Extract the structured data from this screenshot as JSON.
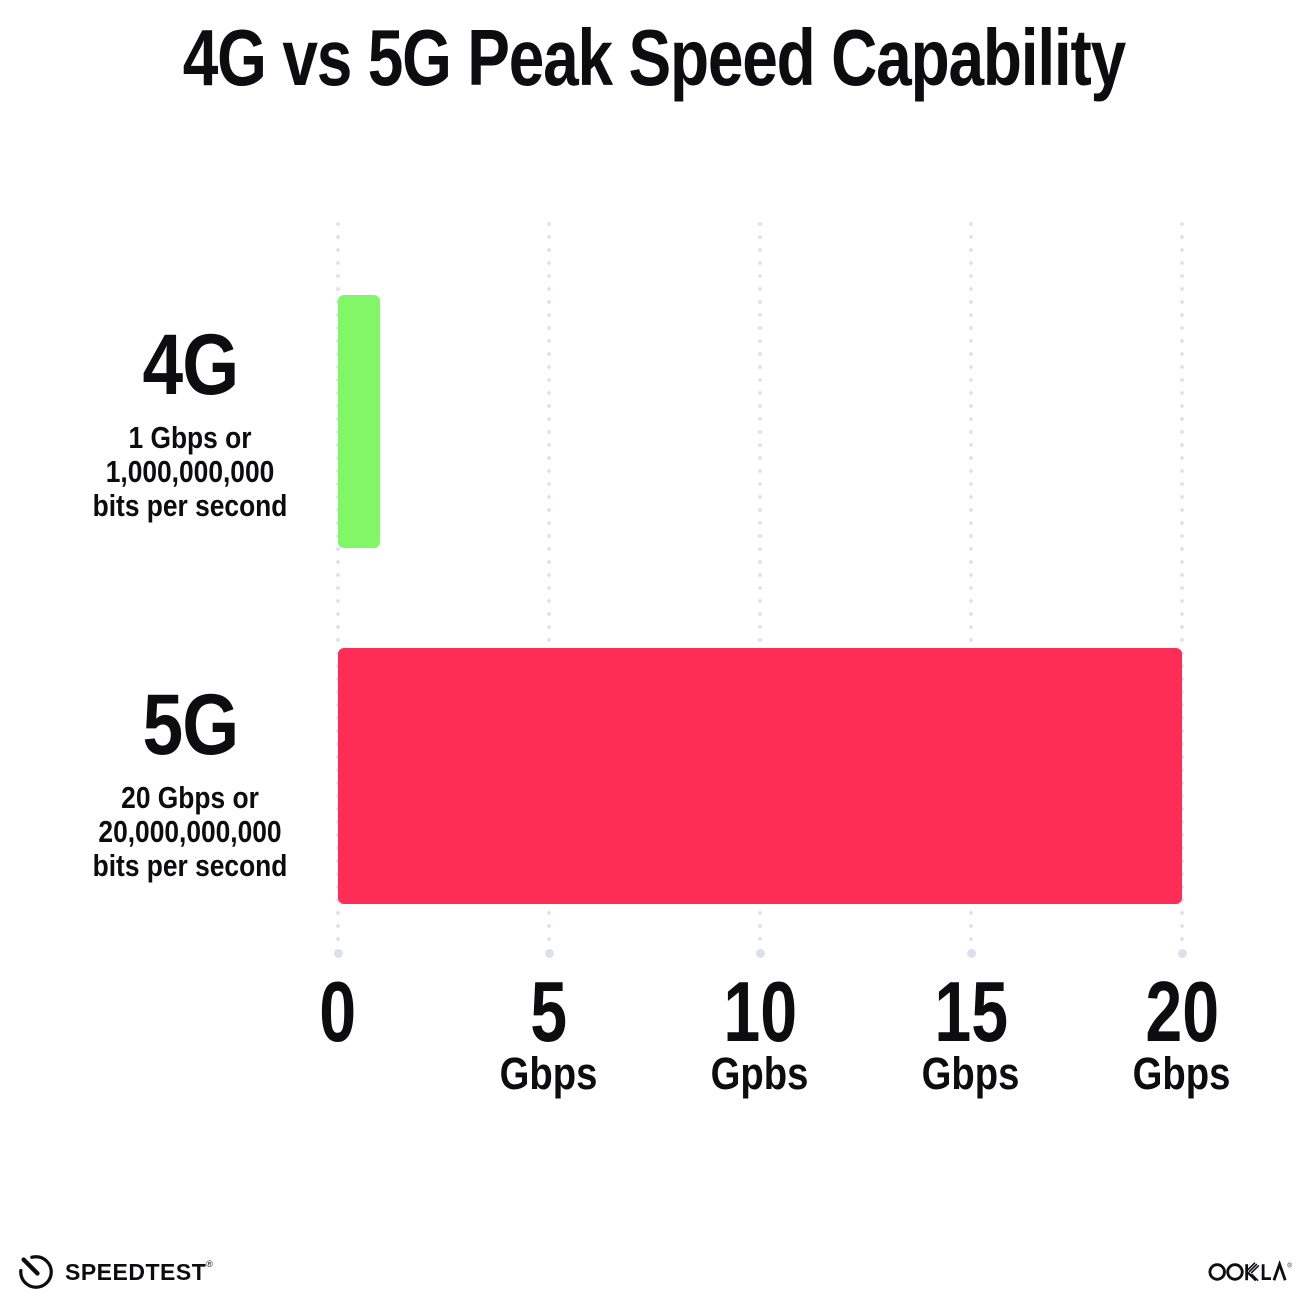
{
  "chart_data": {
    "type": "bar",
    "orientation": "horizontal",
    "title": "4G vs 5G Peak Speed Capability",
    "xlabel": "",
    "ylabel": "",
    "xlim": [
      0,
      20
    ],
    "grid": "vertical-dotted",
    "grid_color": "#e2e2ee",
    "rows": [
      {
        "category": "4G",
        "value_gbps": 1,
        "color": "#81f767",
        "label_lines": [
          "1 Gbps or",
          "1,000,000,000",
          "bits per second"
        ]
      },
      {
        "category": "5G",
        "value_gbps": 20,
        "color": "#fd2d55",
        "label_lines": [
          "20 Gbps or",
          "20,000,000,000",
          "bits per second"
        ]
      }
    ],
    "x_ticks": [
      {
        "value": "0",
        "unit": ""
      },
      {
        "value": "5",
        "unit": "Gbps"
      },
      {
        "value": "10",
        "unit": "Gpbs"
      },
      {
        "value": "15",
        "unit": "Gbps"
      },
      {
        "value": "20",
        "unit": "Gbps"
      }
    ]
  },
  "footer": {
    "speedtest_label": "SPEEDTEST",
    "speedtest_trademark": "®",
    "ookla_label": "OOKLA",
    "ookla_trademark": "®"
  }
}
